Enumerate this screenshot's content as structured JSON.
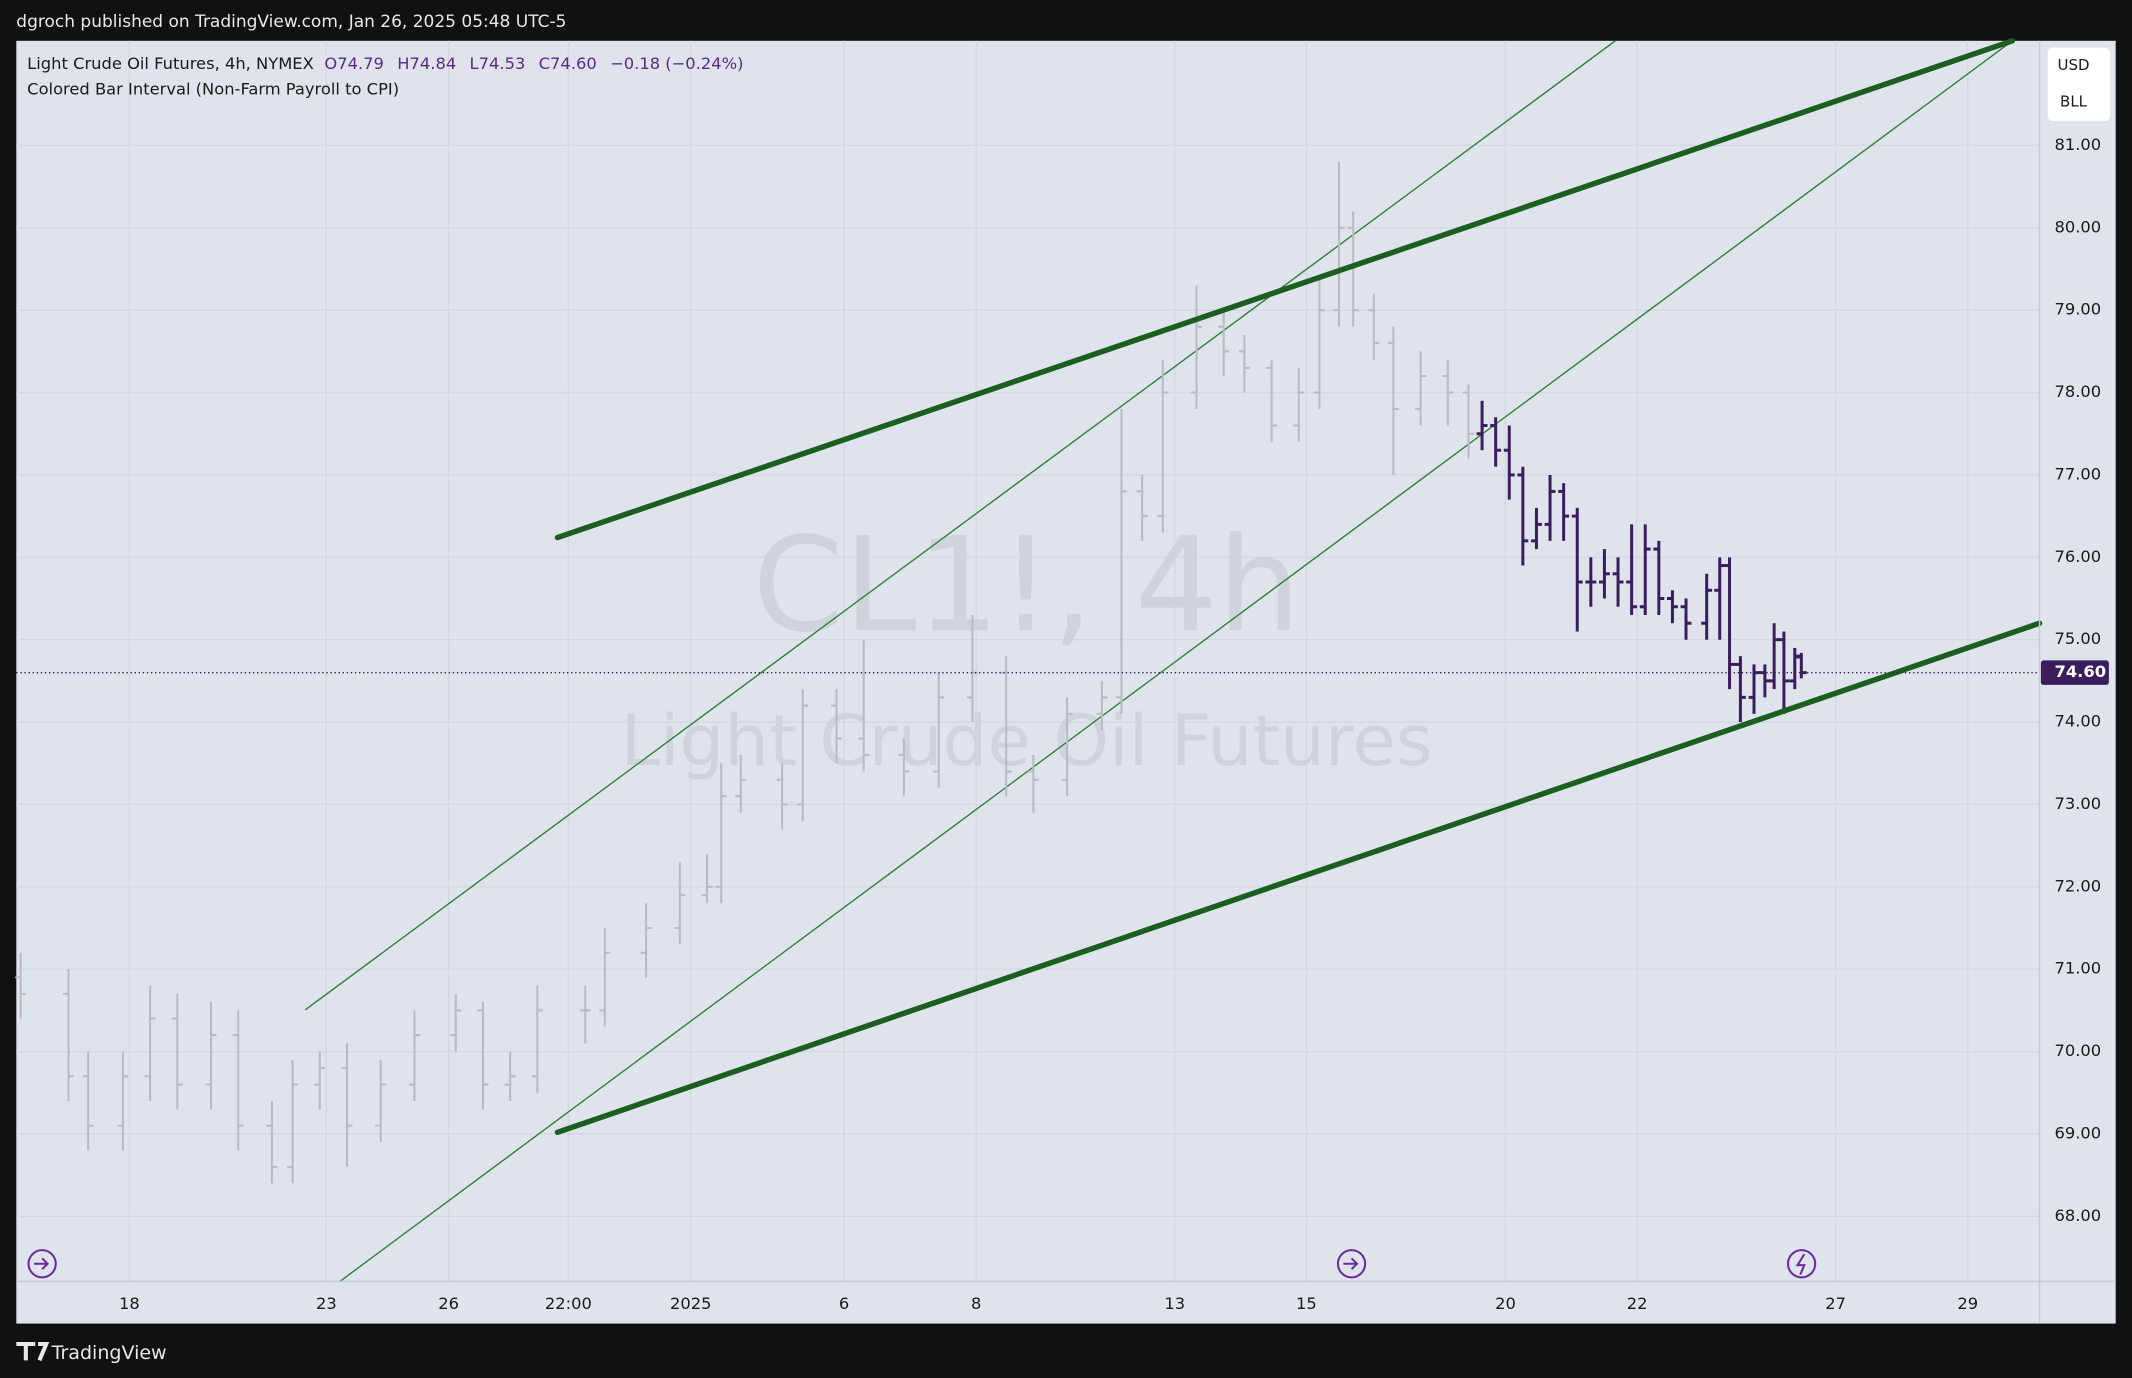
{
  "chart_data": {
    "type": "ohlc",
    "publisher": "dgroch published on TradingView.com, Jan 26, 2025 05:48 UTC-5",
    "legend": {
      "symbol": "Light Crude Oil Futures, 4h, NYMEX",
      "open": "O74.79",
      "high": "H74.84",
      "low": "L74.53",
      "close": "C74.60",
      "change": "−0.18 (−0.24%)"
    },
    "indicator": "Colored Bar Interval (Non-Farm Payroll to CPI)",
    "watermark": {
      "symbol": "CL1!, 4h",
      "description": "Light Crude Oil Futures"
    },
    "currency": "USD",
    "unit": "BLL",
    "brand": "TradingView",
    "xlim": [
      0,
      186
    ],
    "ylim": [
      67.21,
      82.27
    ],
    "grid": true,
    "xticks": [
      {
        "value": 10.4,
        "label": "18"
      },
      {
        "value": 28.5,
        "label": "23"
      },
      {
        "value": 39.75,
        "label": "26"
      },
      {
        "value": 50.75,
        "label": "22:00"
      },
      {
        "value": 62,
        "label": "2025"
      },
      {
        "value": 76.1,
        "label": "6"
      },
      {
        "value": 88.25,
        "label": "8"
      },
      {
        "value": 106.5,
        "label": "13"
      },
      {
        "value": 118.6,
        "label": "15"
      },
      {
        "value": 136.9,
        "label": "20"
      },
      {
        "value": 149,
        "label": "22"
      },
      {
        "value": 167.25,
        "label": "27"
      },
      {
        "value": 179.4,
        "label": "29"
      }
    ],
    "yticks": [
      {
        "value": 68,
        "label": "68.00"
      },
      {
        "value": 69,
        "label": "69.00"
      },
      {
        "value": 70,
        "label": "70.00"
      },
      {
        "value": 71,
        "label": "71.00"
      },
      {
        "value": 72,
        "label": "72.00"
      },
      {
        "value": 73,
        "label": "73.00"
      },
      {
        "value": 74,
        "label": "74.00"
      },
      {
        "value": 75,
        "label": "75.00"
      },
      {
        "value": 76,
        "label": "76.00"
      },
      {
        "value": 77,
        "label": "77.00"
      },
      {
        "value": 78,
        "label": "78.00"
      },
      {
        "value": 79,
        "label": "79.00"
      },
      {
        "value": 80,
        "label": "80.00"
      },
      {
        "value": 81,
        "label": "81.00"
      }
    ],
    "last_price": {
      "value": 74.6,
      "label": "74.60",
      "color": "#3b1c5c"
    },
    "series": [
      {
        "color": "#b8bbc5",
        "x": [
          0.4,
          4.8,
          6.6,
          9.8,
          12.3,
          14.8,
          17.9,
          20.4,
          23.5,
          25.4,
          27.9,
          30.4,
          33.5,
          36.6,
          40.4,
          42.9,
          45.4,
          47.9,
          52.3,
          54.1,
          57.9,
          61.0,
          63.5,
          64.8,
          66.6,
          70.4,
          72.3,
          75.4,
          77.9,
          81.6,
          84.8,
          87.9,
          91.0,
          93.5,
          96.6,
          99.8,
          101.6,
          103.5,
          105.4,
          108.5,
          111.0,
          112.9,
          115.4,
          117.9,
          119.8,
          121.6,
          122.9,
          124.8,
          126.6,
          129.1,
          131.6,
          133.5
        ],
        "open": [
          70.9,
          70.7,
          69.7,
          69.1,
          69.7,
          70.4,
          69.6,
          70.2,
          69.1,
          68.6,
          69.6,
          69.8,
          69.1,
          69.6,
          70.2,
          70.5,
          69.6,
          69.7,
          70.5,
          70.5,
          71.2,
          71.5,
          71.9,
          72.0,
          73.1,
          73.3,
          73.0,
          74.2,
          73.8,
          73.6,
          73.4,
          74.3,
          74.6,
          73.4,
          73.3,
          74.1,
          74.3,
          76.8,
          76.5,
          78.0,
          78.8,
          78.5,
          78.3,
          77.6,
          78.0,
          79.0,
          80.0,
          79.0,
          78.6,
          77.8,
          78.2,
          78.0
        ],
        "high": [
          71.2,
          71.0,
          70.0,
          70.0,
          70.8,
          70.7,
          70.6,
          70.5,
          69.4,
          69.9,
          70.0,
          70.1,
          69.9,
          70.5,
          70.7,
          70.6,
          70.0,
          70.8,
          70.8,
          71.5,
          71.8,
          72.3,
          72.4,
          73.5,
          73.6,
          73.5,
          74.4,
          74.4,
          75.0,
          73.8,
          74.6,
          75.3,
          74.8,
          73.6,
          74.3,
          74.5,
          77.8,
          77.0,
          78.4,
          79.3,
          79.0,
          78.7,
          78.4,
          78.3,
          79.4,
          80.8,
          80.2,
          79.2,
          78.8,
          78.5,
          78.4,
          78.1
        ],
        "low": [
          70.4,
          69.4,
          68.8,
          68.8,
          69.4,
          69.3,
          69.3,
          68.8,
          68.4,
          68.4,
          69.3,
          68.6,
          68.9,
          69.4,
          70.0,
          69.3,
          69.4,
          69.5,
          70.1,
          70.3,
          70.9,
          71.3,
          71.8,
          71.8,
          72.9,
          72.7,
          72.8,
          73.5,
          73.4,
          73.1,
          73.2,
          74.0,
          73.1,
          72.9,
          73.1,
          73.9,
          74.1,
          76.2,
          76.3,
          77.8,
          78.2,
          78.0,
          77.4,
          77.4,
          77.8,
          78.8,
          78.8,
          78.4,
          77.0,
          77.6,
          77.6,
          77.2
        ],
        "close": [
          70.7,
          69.7,
          69.1,
          69.7,
          70.4,
          69.6,
          70.2,
          69.1,
          68.6,
          69.6,
          69.8,
          69.1,
          69.6,
          70.2,
          70.5,
          69.6,
          69.7,
          70.5,
          70.5,
          71.2,
          71.5,
          71.9,
          72.0,
          73.1,
          73.3,
          73.0,
          74.2,
          73.8,
          73.6,
          73.4,
          74.3,
          74.6,
          73.4,
          73.3,
          74.1,
          74.3,
          76.8,
          76.5,
          78.0,
          78.8,
          78.5,
          78.3,
          77.6,
          78.0,
          79.0,
          80.0,
          79.0,
          78.6,
          77.8,
          78.2,
          78.0,
          77.5
        ]
      },
      {
        "color": "#3b1c5c",
        "x": [
          134.75,
          136.0,
          137.25,
          138.5,
          139.75,
          141.0,
          142.25,
          143.5,
          144.75,
          146.0,
          147.25,
          148.5,
          149.75,
          151.0,
          152.25,
          153.5,
          155.4,
          156.6,
          157.5,
          158.5,
          159.75,
          160.75,
          161.6,
          162.5,
          163.5,
          164.1
        ],
        "open": [
          77.5,
          77.6,
          77.3,
          77.0,
          76.2,
          76.4,
          76.8,
          76.5,
          75.7,
          75.7,
          75.8,
          75.7,
          75.4,
          76.1,
          75.5,
          75.4,
          75.2,
          75.6,
          75.9,
          74.7,
          74.3,
          74.6,
          74.5,
          75.0,
          74.5,
          74.79
        ],
        "high": [
          77.9,
          77.7,
          77.6,
          77.1,
          76.6,
          77.0,
          76.9,
          76.6,
          76.0,
          76.1,
          76.0,
          76.4,
          76.4,
          76.2,
          75.6,
          75.5,
          75.8,
          76.0,
          76.0,
          74.8,
          74.7,
          74.7,
          75.2,
          75.1,
          74.9,
          74.84
        ],
        "low": [
          77.3,
          77.1,
          76.7,
          75.9,
          76.1,
          76.2,
          76.2,
          75.1,
          75.4,
          75.5,
          75.4,
          75.3,
          75.3,
          75.3,
          75.2,
          75.0,
          75.0,
          75.0,
          74.4,
          74.0,
          74.1,
          74.3,
          74.4,
          74.1,
          74.4,
          74.53
        ],
        "close": [
          77.6,
          77.3,
          77.0,
          76.2,
          76.4,
          76.8,
          76.5,
          75.7,
          75.7,
          75.8,
          75.7,
          75.4,
          76.1,
          75.5,
          75.4,
          75.2,
          75.6,
          75.9,
          74.7,
          74.3,
          74.6,
          74.5,
          75.0,
          74.5,
          74.8,
          74.6
        ]
      }
    ],
    "trend_lines": [
      {
        "color": "#1b5e20",
        "x": [
          49.75,
          183.5
        ],
        "y": [
          76.24,
          82.27
        ]
      },
      {
        "color": "#1b5e20",
        "x": [
          49.75,
          186
        ],
        "y": [
          69.02,
          75.2
        ]
      }
    ],
    "thin_lines": [
      {
        "color": "#2e7d32",
        "x": [
          26.6,
          147
        ],
        "y": [
          70.51,
          82.27
        ]
      },
      {
        "color": "#2e7d32",
        "x": [
          29.75,
          183.5
        ],
        "y": [
          67.21,
          82.27
        ]
      }
    ]
  }
}
